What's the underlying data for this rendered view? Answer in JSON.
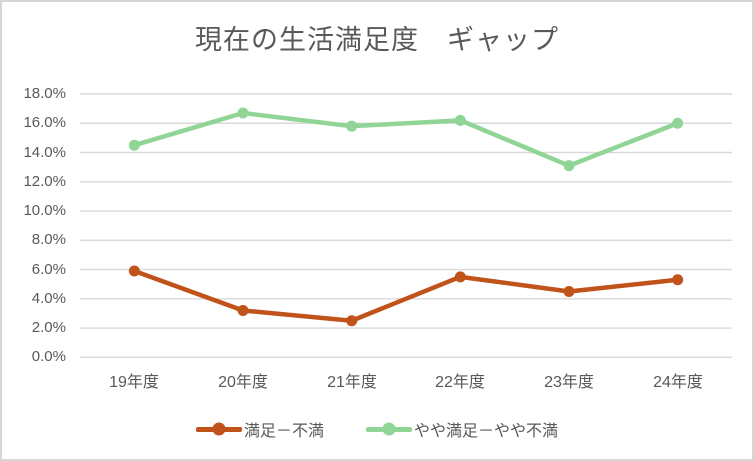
{
  "chart_data": {
    "type": "line",
    "title": "現在の生活満足度　ギャップ",
    "categories": [
      "19年度",
      "20年度",
      "21年度",
      "22年度",
      "23年度",
      "24年度"
    ],
    "series": [
      {
        "name": "満足－不満",
        "color": "#C0531A",
        "values": [
          5.9,
          3.2,
          2.5,
          5.5,
          4.5,
          5.3
        ]
      },
      {
        "name": "やや満足－やや不満",
        "color": "#90D595",
        "values": [
          14.5,
          16.7,
          15.8,
          16.2,
          13.1,
          16.0
        ]
      }
    ],
    "ylim": [
      0,
      18
    ],
    "ytick_step": 2,
    "ytick_labels": [
      "18.0%",
      "16.0%",
      "14.0%",
      "12.0%",
      "10.0%",
      "8.0%",
      "6.0%",
      "4.0%",
      "2.0%",
      "0.0%"
    ],
    "grid": true,
    "legend_position": "bottom",
    "gridline_color": "#D9D9D9",
    "text_color": "#595959",
    "background": "#FFFFFF",
    "border_color": "#D6D6D6"
  }
}
